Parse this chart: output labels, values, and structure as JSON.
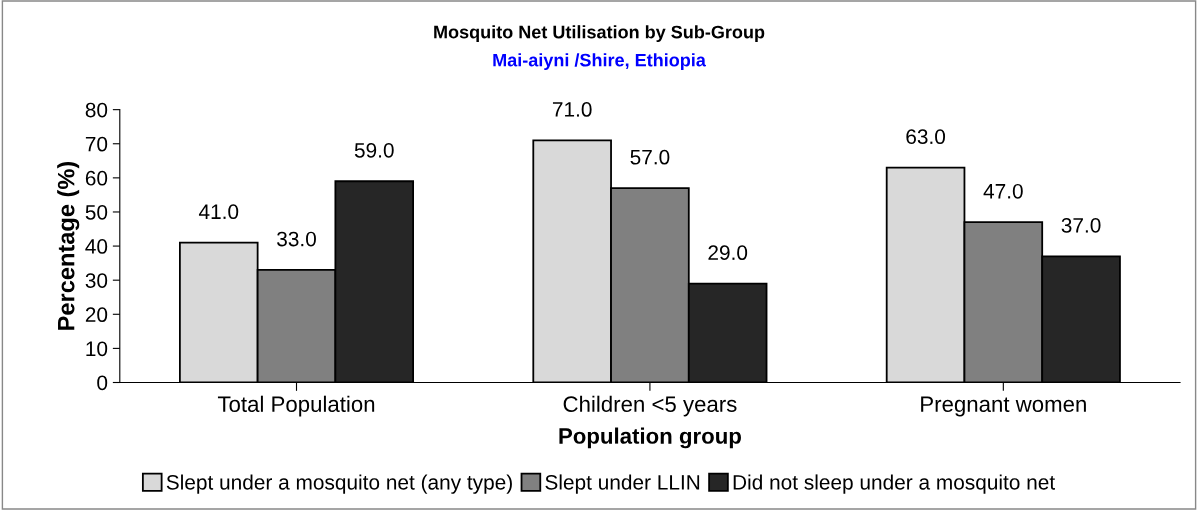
{
  "chart_data": {
    "type": "bar",
    "title": "Mosquito Net Utilisation by Sub-Group",
    "subtitle": "Mai-aiyni /Shire, Ethiopia",
    "xlabel": "Population group",
    "ylabel": "Percentage (%)",
    "categories": [
      "Total Population",
      "Children <5 years",
      "Pregnant women"
    ],
    "series": [
      {
        "name": "Slept under a mosquito net (any type)",
        "color": "#d9d9d9",
        "values": [
          41,
          71,
          63
        ],
        "value_labels": [
          "41.0",
          "71.0",
          "63.0"
        ]
      },
      {
        "name": "Slept under LLIN",
        "color": "#808080",
        "values": [
          33,
          57,
          47
        ],
        "value_labels": [
          "33.0",
          "57.0",
          "47.0"
        ]
      },
      {
        "name": "Did not sleep under a mosquito net",
        "color": "#262626",
        "values": [
          59,
          29,
          37
        ],
        "value_labels": [
          "59.0",
          "29.0",
          "37.0"
        ]
      }
    ],
    "ylim": [
      0,
      80
    ],
    "yticks": [
      0,
      10,
      20,
      30,
      40,
      50,
      60,
      70,
      80
    ],
    "grid": false,
    "legend": "bottom"
  }
}
